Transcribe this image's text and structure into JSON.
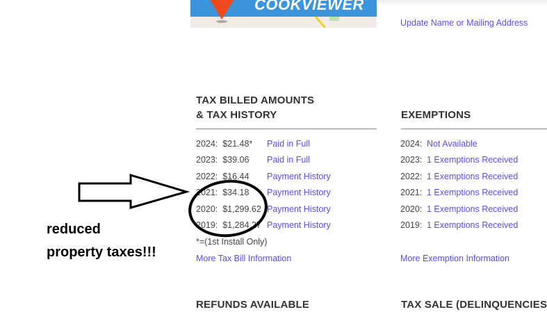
{
  "banner": {
    "brand": "COOKVIEWER"
  },
  "update_link": "Update Name or Mailing Address",
  "tax": {
    "heading_line1": "TAX BILLED AMOUNTS",
    "heading_line2": "& TAX HISTORY",
    "rows": [
      {
        "amount": "2024:  $21.48*",
        "link": "Paid in Full"
      },
      {
        "amount": "2023:  $39.06",
        "link": "Paid in Full"
      },
      {
        "amount": "2022:  $16.44",
        "link": "Payment History"
      },
      {
        "amount": "2021:  $34.18",
        "link": "Payment History"
      },
      {
        "amount": "2020:  $1,299.62",
        "link": "Payment History"
      },
      {
        "amount": "2019:  $1,284.27",
        "link": "Payment History"
      }
    ],
    "footnote": "*=(1st Install Only)",
    "more_link": "More Tax Bill Information"
  },
  "exemptions": {
    "heading": "EXEMPTIONS",
    "rows": [
      {
        "year": "2024:",
        "link": "Not Available"
      },
      {
        "year": "2023:",
        "link": "1 Exemptions Received"
      },
      {
        "year": "2022:",
        "link": "1 Exemptions Received"
      },
      {
        "year": "2021:",
        "link": "1 Exemptions Received"
      },
      {
        "year": "2020:",
        "link": "1 Exemptions Received"
      },
      {
        "year": "2019:",
        "link": "1 Exemptions Received"
      }
    ],
    "more_link": "More Exemption Information"
  },
  "bottom_headings": {
    "refunds": "REFUNDS AVAILABLE",
    "tax_sale": "TAX SALE (DELINQUENCIES)"
  },
  "annotation": {
    "line1": "reduced",
    "line2": "property taxes!!!"
  }
}
